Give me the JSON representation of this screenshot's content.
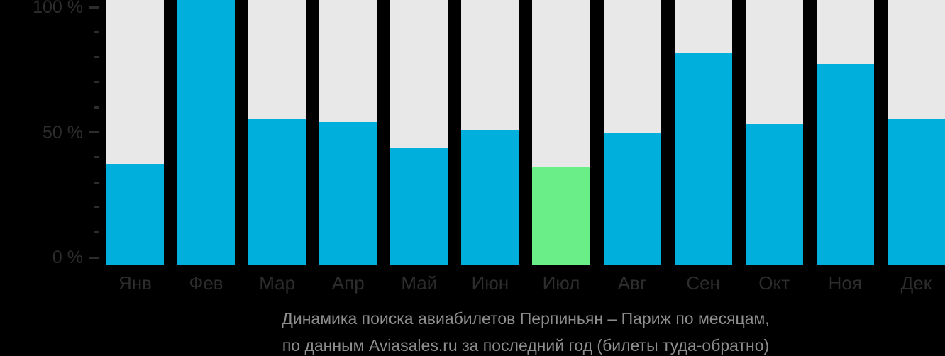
{
  "chart_data": {
    "type": "bar",
    "title": "Динамика поиска авиабилетов Перпиньян – Париж по месяцам,",
    "subtitle": "по данным Aviasales.ru за последний год (билеты туда-обратно)",
    "categories": [
      "Янв",
      "Фев",
      "Мар",
      "Апр",
      "Май",
      "Июн",
      "Июл",
      "Авг",
      "Сен",
      "Окт",
      "Ноя",
      "Дек"
    ],
    "values": [
      38,
      100,
      55,
      54,
      44,
      51,
      37,
      50,
      80,
      53,
      76,
      55
    ],
    "unit": "%",
    "highlight_index": 6,
    "highlighted_month": "Июл",
    "ylim": [
      0,
      100
    ],
    "y_major_ticks": [
      {
        "value": 0,
        "label": "0 %"
      },
      {
        "value": 50,
        "label": "50 %"
      },
      {
        "value": 100,
        "label": "100 %"
      }
    ],
    "y_minor_tick_step": 10,
    "grid": false,
    "legend": false,
    "bar_color": "#00AFDC",
    "highlight_color": "#6AEE87",
    "track_color": "#E8E8E8"
  },
  "colors": {
    "background": "#000000",
    "axis_text": "#2D2D2D",
    "caption_text": "#8E8E8E"
  }
}
